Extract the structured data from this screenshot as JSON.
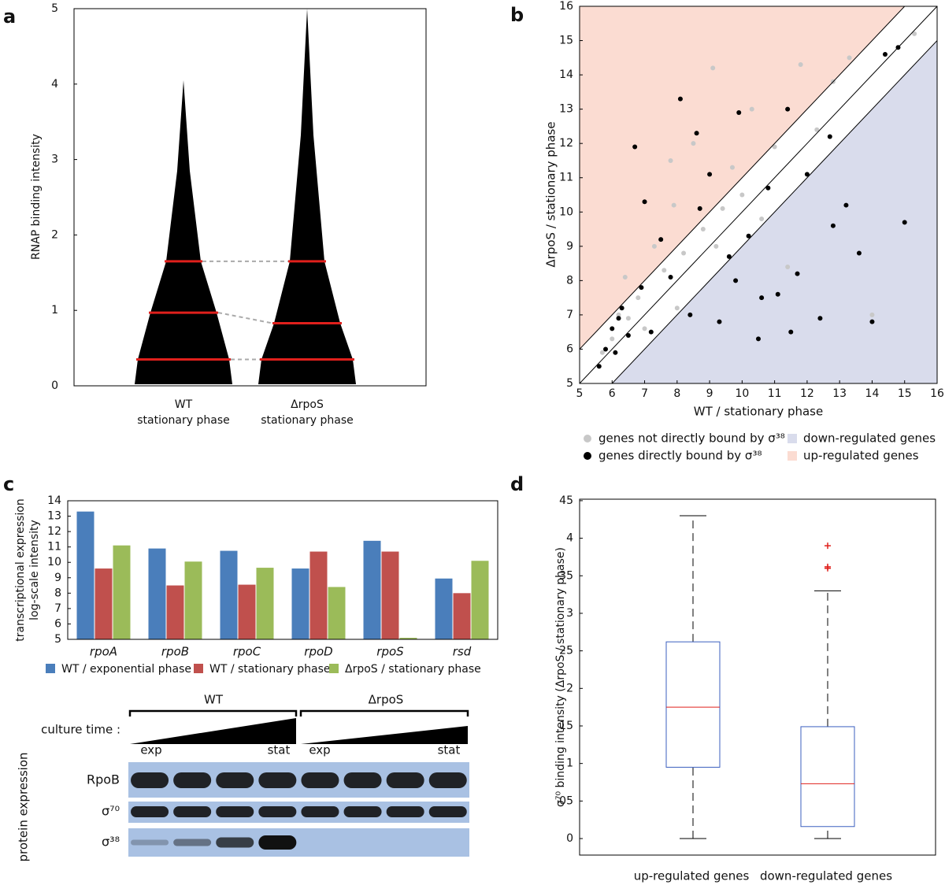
{
  "chart_data": [
    {
      "type": "violin",
      "panel_label": "a",
      "ylabel": "RNAP binding intensity",
      "categories": [
        [
          "WT",
          "stationary phase"
        ],
        [
          "ΔrpoS",
          "stationary phase"
        ]
      ],
      "violins": [
        {
          "quartiles": [
            0.35,
            0.97,
            1.65
          ],
          "max": 4.05
        },
        {
          "quartiles": [
            0.35,
            0.83,
            1.65
          ],
          "max": 5.0
        }
      ],
      "color": "#000000",
      "quartile_color": "#e0201c",
      "ylim": [
        0,
        5
      ],
      "yticks": [
        0,
        1,
        2,
        3,
        4,
        5
      ]
    },
    {
      "type": "scatter",
      "panel_label": "b",
      "xlabel": "WT / stationary phase",
      "ylabel": "ΔrpoS / stationary phase",
      "xlim": [
        5,
        16
      ],
      "ylim": [
        5,
        16
      ],
      "xticks": [
        5,
        6,
        7,
        8,
        9,
        10,
        11,
        12,
        13,
        14,
        15,
        16
      ],
      "yticks": [
        5,
        6,
        7,
        8,
        9,
        10,
        11,
        12,
        13,
        14,
        15,
        16
      ],
      "reference_lines": [
        -1,
        0,
        1
      ],
      "regions": [
        {
          "name": "down-regulated genes",
          "color": "#d9dcec"
        },
        {
          "name": "up-regulated genes",
          "color": "#fbdcd2"
        }
      ],
      "series": [
        {
          "name": "genes not directly bound by σ³⁸",
          "color": "#c8c8c8",
          "x": [
            5.7,
            6.0,
            6.2,
            6.4,
            6.8,
            7.0,
            7.3,
            7.6,
            7.9,
            8.2,
            8.5,
            8.8,
            9.1,
            9.4,
            9.7,
            10.0,
            10.3,
            10.6,
            11.0,
            11.4,
            11.8,
            12.3,
            12.8,
            13.3,
            14.0,
            15.3,
            6.5,
            7.8,
            9.2,
            8.0
          ],
          "values": [
            5.9,
            6.3,
            7.0,
            8.1,
            7.5,
            6.6,
            9.0,
            8.3,
            10.2,
            8.8,
            12.0,
            9.5,
            14.2,
            10.1,
            11.3,
            10.5,
            13.0,
            9.8,
            11.9,
            8.4,
            14.3,
            12.4,
            13.8,
            14.5,
            7.0,
            15.2,
            6.9,
            11.5,
            9.0,
            7.2
          ]
        },
        {
          "name": "genes directly bound by σ³⁸",
          "color": "#000000",
          "x": [
            5.6,
            5.8,
            6.0,
            6.1,
            6.3,
            6.5,
            6.7,
            6.9,
            7.2,
            7.5,
            7.8,
            8.1,
            8.4,
            8.7,
            9.0,
            9.3,
            9.6,
            9.9,
            10.2,
            10.5,
            10.8,
            11.1,
            11.4,
            11.7,
            12.0,
            12.4,
            12.8,
            13.2,
            13.6,
            14.0,
            14.4,
            14.8,
            15.0,
            6.2,
            7.0,
            8.6,
            9.8,
            10.6,
            11.5,
            12.7
          ],
          "values": [
            5.5,
            6.0,
            6.6,
            5.9,
            7.2,
            6.4,
            11.9,
            7.8,
            6.5,
            9.2,
            8.1,
            13.3,
            7.0,
            10.1,
            11.1,
            6.8,
            8.7,
            12.9,
            9.3,
            6.3,
            10.7,
            7.6,
            13.0,
            8.2,
            11.1,
            6.9,
            9.6,
            10.2,
            8.8,
            6.8,
            14.6,
            14.8,
            9.7,
            6.9,
            10.3,
            12.3,
            8.0,
            7.5,
            6.5,
            12.2
          ]
        }
      ]
    },
    {
      "type": "bar",
      "panel_label": "c",
      "ylabel": [
        "transcriptional expression",
        "log-scale intensity"
      ],
      "categories": [
        "rpoA",
        "rpoB",
        "rpoC",
        "rpoD",
        "rpoS",
        "rsd"
      ],
      "ylim": [
        5,
        14
      ],
      "yticks": [
        5,
        6,
        7,
        8,
        9,
        10,
        11,
        12,
        13,
        14
      ],
      "series": [
        {
          "name": "WT / exponential phase",
          "color": "#4a7ebb",
          "values": [
            13.3,
            10.9,
            10.75,
            9.6,
            11.4,
            8.95
          ]
        },
        {
          "name": "WT / stationary phase",
          "color": "#c0504d",
          "values": [
            9.6,
            8.5,
            8.55,
            10.7,
            10.7,
            8.0
          ]
        },
        {
          "name": "ΔrpoS / stationary phase",
          "color": "#9bbb59",
          "values": [
            11.1,
            10.05,
            9.65,
            8.4,
            5.1,
            10.1
          ]
        }
      ]
    },
    {
      "type": "box",
      "panel_label": "d",
      "ylabel": "σ⁷⁰ binding intensity (ΔrpoS / stationary phase)",
      "categories": [
        "up-regulated genes",
        "down-regulated genes"
      ],
      "boxes": [
        {
          "min": 0,
          "q1": 0.95,
          "median": 1.75,
          "q3": 2.62,
          "max": 4.3,
          "outliers": []
        },
        {
          "min": 0,
          "q1": 0.16,
          "median": 0.73,
          "q3": 1.49,
          "max": 3.3,
          "outliers": [
            3.6,
            3.62,
            3.9
          ]
        }
      ],
      "color": "#3b5fbf",
      "median_color": "#e0201c",
      "ylim": [
        -0.22,
        4.52
      ],
      "yticks": [
        0,
        {
          "value": 0.5,
          "label": "05"
        },
        1,
        {
          "value": 1.5,
          "label": "15"
        },
        2,
        {
          "value": 2.5,
          "label": "25"
        },
        3,
        {
          "value": 3.5,
          "label": "35"
        },
        4,
        {
          "value": 4.5,
          "label": "45"
        }
      ]
    }
  ],
  "blot": {
    "groups": [
      "WT",
      "ΔrpoS"
    ],
    "culture_time": "culture time :",
    "time_labels": [
      "exp",
      "stat",
      "exp",
      "stat"
    ],
    "rows": [
      "RpoB",
      "σ⁷⁰",
      "σ³⁸"
    ],
    "side_label": "protein expression"
  }
}
